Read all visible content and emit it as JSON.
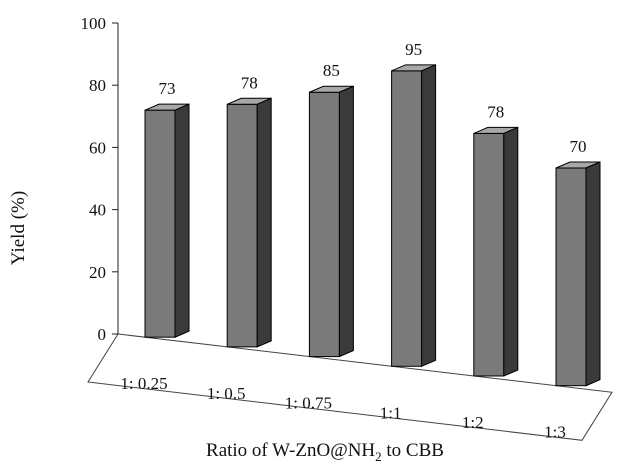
{
  "chart_data": {
    "type": "bar",
    "style": "3d-column",
    "categories": [
      "1: 0.25",
      "1: 0.5",
      "1: 0.75",
      "1:1",
      "1:2",
      "1:3"
    ],
    "values": [
      73,
      78,
      85,
      95,
      78,
      70
    ],
    "data_labels": [
      "73",
      "78",
      "85",
      "95",
      "78",
      "70"
    ],
    "ylabel": "Yield (%)",
    "xlabel_parts": {
      "pre": "Ratio of W-ZnO@NH",
      "sub": "2",
      "post": " to CBB"
    },
    "ylim": [
      0,
      100
    ],
    "yticks": [
      0,
      20,
      40,
      60,
      80,
      100
    ],
    "grid": false,
    "legend": "none",
    "colors": {
      "front": "#7a7a7a",
      "top": "#a8a8a8",
      "side": "#3a3a3a",
      "outline": "#000000"
    }
  }
}
